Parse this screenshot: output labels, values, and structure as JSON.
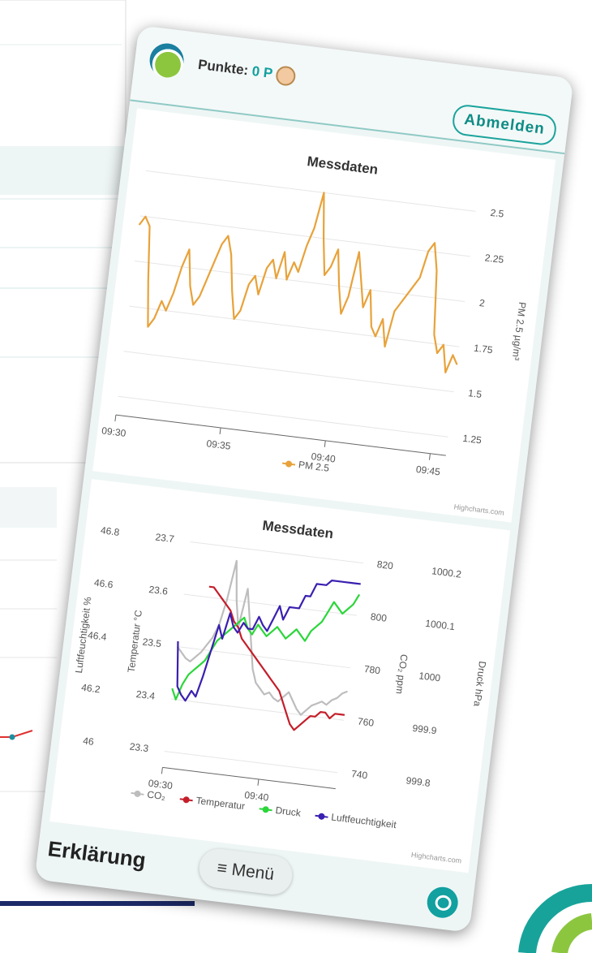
{
  "header": {
    "points_label": "Punkte:",
    "points": "0 P",
    "logout": "Abmelden"
  },
  "chart_data": [
    {
      "type": "line",
      "title": "Messdaten",
      "y_label": "PM 2.5 µg/m³",
      "credits": "Highcharts.com",
      "grid": true,
      "ylim": [
        1.25,
        2.5
      ],
      "yticks": [
        1.25,
        1.5,
        1.75,
        2,
        2.25,
        2.5
      ],
      "categories": [
        "09:30",
        null,
        null,
        null,
        null,
        null,
        null,
        null,
        null,
        null,
        null,
        null,
        null,
        null,
        null,
        null,
        null,
        null,
        null,
        null,
        "09:35",
        null,
        null,
        null,
        null,
        null,
        null,
        null,
        null,
        null,
        null,
        null,
        null,
        null,
        null,
        null,
        null,
        null,
        null,
        null,
        "09:40",
        null,
        null,
        null,
        null,
        null,
        null,
        null,
        null,
        null,
        null,
        null,
        null,
        null,
        null,
        null,
        null,
        null,
        null,
        null,
        "09:45",
        null,
        null,
        null
      ],
      "series": [
        {
          "name": "PM 2.5",
          "color": "#e8a23a",
          "values": [
            2.2,
            2.25,
            2.2,
            1.9,
            1.65,
            1.7,
            1.8,
            1.75,
            1.85,
            2.0,
            2.1,
            1.9,
            1.8,
            1.85,
            1.95,
            2.05,
            2.15,
            2.2,
            2.1,
            1.9,
            1.75,
            1.8,
            1.95,
            2.0,
            1.9,
            2.05,
            2.1,
            2.0,
            2.15,
            2.0,
            2.1,
            2.05,
            2.2,
            2.3,
            2.5,
            2.25,
            2.05,
            2.1,
            2.2,
            2.0,
            1.85,
            1.95,
            2.2,
            2.05,
            1.9,
            2.0,
            1.8,
            1.75,
            1.85,
            1.7,
            1.9,
            1.95,
            2.0,
            2.05,
            2.1,
            2.25,
            2.3,
            2.15,
            1.8,
            1.7,
            1.75,
            1.6,
            1.7,
            1.65
          ]
        }
      ]
    },
    {
      "type": "line",
      "title": "Messdaten",
      "credits": "Highcharts.com",
      "grid": true,
      "categories": [
        "09:30",
        null,
        null,
        null,
        null,
        null,
        null,
        null,
        null,
        null,
        null,
        null,
        null,
        null,
        null,
        null,
        null,
        null,
        null,
        null,
        "09:40",
        null,
        null,
        null,
        null,
        null,
        null,
        null,
        null,
        null,
        null,
        null,
        null,
        null,
        null,
        null,
        null
      ],
      "series": [
        {
          "name": "CO₂",
          "color": "#bdbdbd",
          "y_label": "CO₂ ppm",
          "ylim": [
            740,
            820
          ],
          "yticks": [
            740,
            760,
            780,
            800,
            820
          ],
          "values": [
            780,
            778,
            776,
            775,
            777,
            779,
            782,
            785,
            790,
            800,
            815,
            800,
            790,
            805,
            795,
            785,
            775,
            770,
            768,
            766,
            767,
            765,
            764,
            766,
            768,
            765,
            762,
            760,
            762,
            764,
            765,
            766,
            765,
            767,
            768,
            770,
            771
          ]
        },
        {
          "name": "Temperatur",
          "color": "#c41e2a",
          "y_label": "Temperatur °C",
          "ylim": [
            23.3,
            23.7
          ],
          "yticks": [
            23.3,
            23.4,
            23.5,
            23.6,
            23.7
          ],
          "values": [
            null,
            null,
            null,
            null,
            null,
            23.62,
            23.62,
            23.61,
            23.6,
            23.59,
            23.58,
            23.56,
            23.55,
            23.53,
            23.52,
            23.51,
            23.5,
            23.49,
            23.48,
            23.47,
            23.46,
            23.45,
            23.44,
            23.42,
            23.4,
            23.38,
            23.37,
            23.38,
            23.39,
            23.4,
            23.4,
            23.41,
            23.41,
            23.4,
            23.41,
            23.41,
            23.41
          ]
        },
        {
          "name": "Druck",
          "color": "#2bd63a",
          "y_label": "Druck hPa",
          "ylim": [
            999.8,
            1000.2
          ],
          "yticks": [
            999.8,
            999.9,
            1000,
            1000.1,
            1000.2
          ],
          "values": [
            999.92,
            999.9,
            999.93,
            999.95,
            999.96,
            999.97,
            999.98,
            1000.0,
            1000.02,
            1000.03,
            1000.04,
            1000.05,
            1000.06,
            1000.07,
            1000.05,
            1000.04,
            1000.06,
            1000.05,
            1000.04,
            1000.05,
            1000.06,
            1000.05,
            1000.04,
            1000.05,
            1000.06,
            1000.05,
            1000.04,
            1000.06,
            1000.07,
            1000.08,
            1000.1,
            1000.12,
            1000.11,
            1000.1,
            1000.11,
            1000.12,
            1000.14
          ]
        },
        {
          "name": "Luftfeuchtigkeit",
          "color": "#3a1fb0",
          "y_label": "Luftfeuchtigkeit %",
          "ylim": [
            46,
            46.8
          ],
          "yticks": [
            46,
            46.2,
            46.4,
            46.6,
            46.8
          ],
          "values": [
            46.42,
            46.25,
            46.22,
            46.2,
            46.24,
            46.22,
            46.3,
            46.4,
            46.5,
            46.45,
            46.55,
            46.5,
            46.48,
            46.52,
            46.5,
            46.5,
            46.55,
            46.52,
            46.5,
            46.55,
            46.6,
            46.55,
            46.6,
            46.6,
            46.6,
            46.65,
            46.65,
            46.7,
            46.7,
            46.7,
            46.72,
            46.72,
            46.72,
            46.72,
            46.72,
            46.72,
            46.72
          ]
        }
      ]
    }
  ],
  "footer": {
    "explain": "Erklärung",
    "menu": "Menü"
  }
}
